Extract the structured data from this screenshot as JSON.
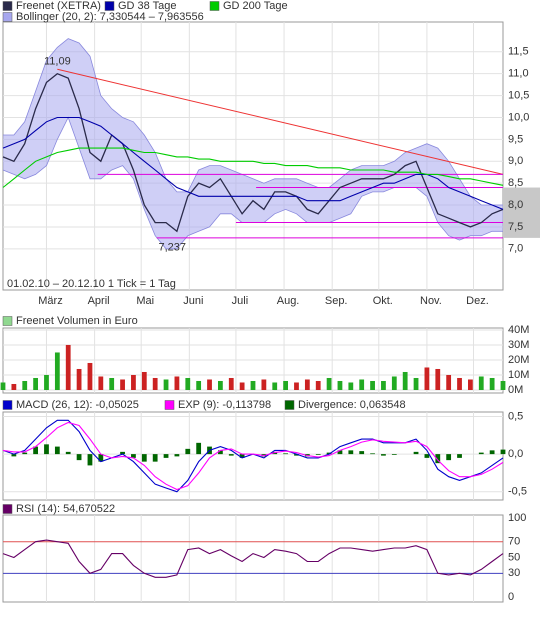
{
  "chart_data": [
    {
      "type": "line",
      "note": "01.02.10 – 20.12.10   1 Tick = 1 Tag",
      "x": [
        0,
        7,
        14,
        21,
        28,
        35,
        42,
        49,
        56,
        63,
        70,
        77,
        84,
        91,
        98,
        105,
        112,
        119,
        126,
        133,
        140,
        147,
        154,
        161,
        168,
        175,
        182,
        189,
        196,
        203,
        210,
        217,
        224,
        231,
        238,
        245,
        252,
        259,
        266,
        273,
        280,
        287,
        294,
        301,
        308,
        315,
        322
      ],
      "xlim": [
        0,
        322
      ],
      "xticks": [
        {
          "value": 28,
          "label": "März"
        },
        {
          "value": 59,
          "label": "April"
        },
        {
          "value": 89,
          "label": "Mai"
        },
        {
          "value": 120,
          "label": "Juni"
        },
        {
          "value": 150,
          "label": "Juli"
        },
        {
          "value": 181,
          "label": "Aug."
        },
        {
          "value": 212,
          "label": "Sep."
        },
        {
          "value": 242,
          "label": "Okt."
        },
        {
          "value": 273,
          "label": "Nov."
        },
        {
          "value": 303,
          "label": "Dez."
        }
      ],
      "ylim": [
        6.06,
        12.18
      ],
      "yticks": [
        {
          "value": 7,
          "label": "7,0"
        },
        {
          "value": 7.5,
          "label": "7,5"
        },
        {
          "value": 8,
          "label": "8,0"
        },
        {
          "value": 8.5,
          "label": "8,5"
        },
        {
          "value": 9,
          "label": "9,0"
        },
        {
          "value": 9.5,
          "label": "9,5"
        },
        {
          "value": 10,
          "label": "10,0"
        },
        {
          "value": 10.5,
          "label": "10,5"
        },
        {
          "value": 11,
          "label": "11,0"
        },
        {
          "value": 11.5,
          "label": "11,5"
        }
      ],
      "grid": true,
      "series": [
        {
          "name": "Freenet (XETRA)",
          "color": "#2a2a4a",
          "values": [
            9.1,
            9.0,
            9.4,
            10.2,
            10.8,
            11.0,
            10.9,
            10.2,
            9.2,
            9.0,
            9.6,
            9.4,
            8.8,
            8.0,
            7.6,
            7.6,
            7.4,
            8.2,
            8.5,
            8.4,
            8.6,
            8.2,
            7.8,
            8.1,
            7.9,
            8.3,
            8.3,
            8.2,
            7.9,
            7.8,
            8.1,
            8.4,
            8.5,
            8.6,
            8.6,
            8.6,
            8.7,
            8.9,
            9.0,
            8.4,
            7.8,
            7.7,
            7.6,
            7.5,
            7.6,
            7.8,
            7.9
          ]
        },
        {
          "name": "GD 38 Tage",
          "color": "#0000aa",
          "values": [
            9.3,
            9.4,
            9.5,
            9.7,
            9.9,
            10.0,
            10.0,
            10.0,
            9.9,
            9.8,
            9.6,
            9.4,
            9.2,
            9.0,
            8.8,
            8.6,
            8.4,
            8.3,
            8.2,
            8.2,
            8.2,
            8.2,
            8.2,
            8.2,
            8.2,
            8.2,
            8.2,
            8.2,
            8.1,
            8.1,
            8.1,
            8.1,
            8.2,
            8.3,
            8.4,
            8.5,
            8.5,
            8.6,
            8.7,
            8.7,
            8.6,
            8.4,
            8.3,
            8.2,
            8.1,
            8.0,
            7.9
          ]
        },
        {
          "name": "GD 200 Tage",
          "color": "#00cc00",
          "values": [
            8.4,
            8.6,
            8.8,
            9.0,
            9.1,
            9.2,
            9.25,
            9.3,
            9.3,
            9.3,
            9.3,
            9.3,
            9.25,
            9.2,
            9.2,
            9.15,
            9.1,
            9.1,
            9.05,
            9.05,
            9.0,
            9.0,
            9.0,
            9.0,
            8.95,
            8.95,
            8.9,
            8.9,
            8.9,
            8.85,
            8.85,
            8.85,
            8.8,
            8.8,
            8.8,
            8.8,
            8.75,
            8.75,
            8.75,
            8.7,
            8.7,
            8.65,
            8.6,
            8.6,
            8.55,
            8.5,
            8.45
          ]
        }
      ],
      "band": {
        "name": "Bollinger (20, 2): 7,330544 – 7,963556",
        "color": "#a8a8ee",
        "upper": [
          9.6,
          9.6,
          9.9,
          10.6,
          11.3,
          11.6,
          11.8,
          11.7,
          11.4,
          10.5,
          10.2,
          10.0,
          9.9,
          9.6,
          9.2,
          8.6,
          8.3,
          8.3,
          8.8,
          8.9,
          8.9,
          8.8,
          8.7,
          8.6,
          8.5,
          8.6,
          8.6,
          8.6,
          8.5,
          8.4,
          8.4,
          8.6,
          8.8,
          8.9,
          8.9,
          8.9,
          9.0,
          9.2,
          9.3,
          9.4,
          9.3,
          9.0,
          8.6,
          8.2,
          8.0,
          8.0,
          8.0
        ],
        "lower": [
          8.8,
          8.7,
          8.6,
          8.7,
          8.9,
          9.5,
          10.0,
          9.3,
          8.6,
          8.6,
          8.8,
          8.9,
          8.6,
          7.9,
          7.3,
          7.0,
          7.0,
          7.3,
          7.4,
          7.5,
          7.8,
          7.8,
          7.6,
          7.6,
          7.6,
          7.8,
          7.9,
          7.8,
          7.6,
          7.6,
          7.6,
          7.7,
          7.8,
          8.2,
          8.3,
          8.3,
          8.4,
          8.4,
          8.4,
          8.2,
          7.6,
          7.3,
          7.2,
          7.3,
          7.3,
          7.4,
          7.4
        ]
      },
      "lines": [
        {
          "color": "#ee3333",
          "x": [
            35,
            322
          ],
          "y": [
            11.1,
            8.7
          ]
        },
        {
          "color": "#dd00dd",
          "x": [
            61,
            322
          ],
          "y": [
            8.7,
            8.7
          ]
        },
        {
          "color": "#dd00dd",
          "x": [
            163,
            322
          ],
          "y": [
            8.4,
            8.4
          ]
        },
        {
          "color": "#dd00dd",
          "x": [
            150,
            322
          ],
          "y": [
            7.6,
            7.6
          ]
        },
        {
          "color": "#dd00dd",
          "x": [
            99,
            322
          ],
          "y": [
            7.25,
            7.25
          ]
        }
      ],
      "highlight": [
        7.25,
        8.4
      ],
      "annotations": [
        {
          "label": "11,09",
          "value": 11.09,
          "x": 35
        },
        {
          "label": "7,237",
          "value": 7.237,
          "x": 109
        }
      ]
    },
    {
      "type": "bar",
      "title": "Freenet Volumen in Euro",
      "color": "#90d890",
      "up_color": "#22aa22",
      "down_color": "#cc2222",
      "x": [
        0,
        7,
        14,
        21,
        28,
        35,
        42,
        49,
        56,
        63,
        70,
        77,
        84,
        91,
        98,
        105,
        112,
        119,
        126,
        133,
        140,
        147,
        154,
        161,
        168,
        175,
        182,
        189,
        196,
        203,
        210,
        217,
        224,
        231,
        238,
        245,
        252,
        259,
        266,
        273,
        280,
        287,
        294,
        301,
        308,
        315,
        322
      ],
      "xlim": [
        0,
        322
      ],
      "values": [
        5,
        4,
        6,
        8,
        10,
        25,
        30,
        14,
        18,
        9,
        8,
        7,
        10,
        12,
        8,
        7,
        9,
        8,
        6,
        7,
        6,
        8,
        5,
        6,
        7,
        5,
        6,
        5,
        7,
        6,
        8,
        6,
        5,
        7,
        6,
        6,
        9,
        12,
        8,
        15,
        14,
        10,
        8,
        7,
        9,
        8,
        6
      ],
      "ylim": [
        -2,
        41.3
      ],
      "yticks": [
        {
          "value": 0,
          "label": "0M"
        },
        {
          "value": 10,
          "label": "10M"
        },
        {
          "value": 20,
          "label": "20M"
        },
        {
          "value": 30,
          "label": "30M"
        },
        {
          "value": 40,
          "label": "40M"
        }
      ],
      "grid": true
    },
    {
      "type": "line",
      "x": [
        0,
        7,
        14,
        21,
        28,
        35,
        42,
        49,
        56,
        63,
        70,
        77,
        84,
        91,
        98,
        105,
        112,
        119,
        126,
        133,
        140,
        147,
        154,
        161,
        168,
        175,
        182,
        189,
        196,
        203,
        210,
        217,
        224,
        231,
        238,
        245,
        252,
        259,
        266,
        273,
        280,
        287,
        294,
        301,
        308,
        315,
        322
      ],
      "xlim": [
        0,
        322
      ],
      "ylim": [
        -0.61,
        0.56
      ],
      "yticks": [
        {
          "value": -0.5,
          "label": "-0,5"
        },
        {
          "value": 0,
          "label": "0,0"
        },
        {
          "value": 0.5,
          "label": "0,5"
        }
      ],
      "grid": true,
      "series": [
        {
          "name": "Divergence: 0,063548",
          "color": "#006600",
          "style": "bar",
          "values": [
            0.0,
            -0.03,
            0.02,
            0.1,
            0.13,
            0.1,
            0.03,
            -0.08,
            -0.15,
            -0.1,
            0.0,
            0.03,
            -0.05,
            -0.1,
            -0.1,
            -0.05,
            -0.03,
            0.07,
            0.15,
            0.1,
            0.05,
            -0.02,
            -0.05,
            0.0,
            -0.03,
            0.03,
            0.01,
            -0.02,
            -0.03,
            -0.01,
            0.02,
            0.05,
            0.05,
            0.04,
            0.01,
            -0.02,
            -0.01,
            0.0,
            0.03,
            -0.05,
            -0.12,
            -0.08,
            -0.05,
            0.0,
            0.02,
            0.05,
            0.06
          ]
        },
        {
          "name": "MACD (26, 12): -0,05025",
          "color": "#0000cc",
          "values": [
            0.05,
            0.0,
            0.05,
            0.2,
            0.35,
            0.45,
            0.45,
            0.3,
            0.05,
            -0.1,
            -0.05,
            0.0,
            -0.1,
            -0.25,
            -0.4,
            -0.45,
            -0.5,
            -0.35,
            -0.1,
            0.05,
            0.1,
            0.05,
            -0.05,
            0.0,
            -0.05,
            0.05,
            0.05,
            0.0,
            -0.05,
            -0.05,
            0.0,
            0.1,
            0.15,
            0.2,
            0.2,
            0.15,
            0.15,
            0.15,
            0.2,
            0.05,
            -0.2,
            -0.3,
            -0.35,
            -0.3,
            -0.25,
            -0.15,
            -0.05
          ]
        },
        {
          "name": "EXP (9): -0,113798",
          "color": "#ff00ff",
          "values": [
            0.05,
            0.03,
            0.03,
            0.1,
            0.22,
            0.35,
            0.42,
            0.38,
            0.2,
            0.0,
            -0.05,
            -0.03,
            -0.05,
            -0.15,
            -0.3,
            -0.4,
            -0.47,
            -0.42,
            -0.25,
            -0.05,
            0.05,
            0.07,
            0.0,
            0.0,
            -0.02,
            0.02,
            0.04,
            0.02,
            -0.02,
            -0.04,
            -0.02,
            0.05,
            0.1,
            0.16,
            0.19,
            0.17,
            0.16,
            0.15,
            0.17,
            0.1,
            -0.08,
            -0.22,
            -0.3,
            -0.3,
            -0.27,
            -0.2,
            -0.11
          ]
        }
      ]
    },
    {
      "type": "line",
      "x": [
        0,
        7,
        14,
        21,
        28,
        35,
        42,
        49,
        56,
        63,
        70,
        77,
        84,
        91,
        98,
        105,
        112,
        119,
        126,
        133,
        140,
        147,
        154,
        161,
        168,
        175,
        182,
        189,
        196,
        203,
        210,
        217,
        224,
        231,
        238,
        245,
        252,
        259,
        266,
        273,
        280,
        287,
        294,
        301,
        308,
        315,
        322
      ],
      "xlim": [
        0,
        322
      ],
      "ylim": [
        -6.3,
        103.8
      ],
      "yticks": [
        0,
        30,
        50,
        70,
        100
      ],
      "grid": false,
      "reflines": [
        {
          "value": 70,
          "color": "#e05050"
        },
        {
          "value": 30,
          "color": "#4040c0"
        }
      ],
      "series": [
        {
          "name": "RSI (14): 54,670522",
          "color": "#660066",
          "values": [
            55,
            50,
            60,
            70,
            72,
            70,
            68,
            45,
            30,
            35,
            55,
            55,
            40,
            30,
            25,
            25,
            28,
            60,
            62,
            55,
            60,
            52,
            45,
            55,
            50,
            60,
            58,
            55,
            45,
            45,
            55,
            62,
            62,
            60,
            58,
            60,
            62,
            62,
            65,
            60,
            30,
            28,
            30,
            28,
            35,
            45,
            55
          ]
        }
      ]
    }
  ]
}
